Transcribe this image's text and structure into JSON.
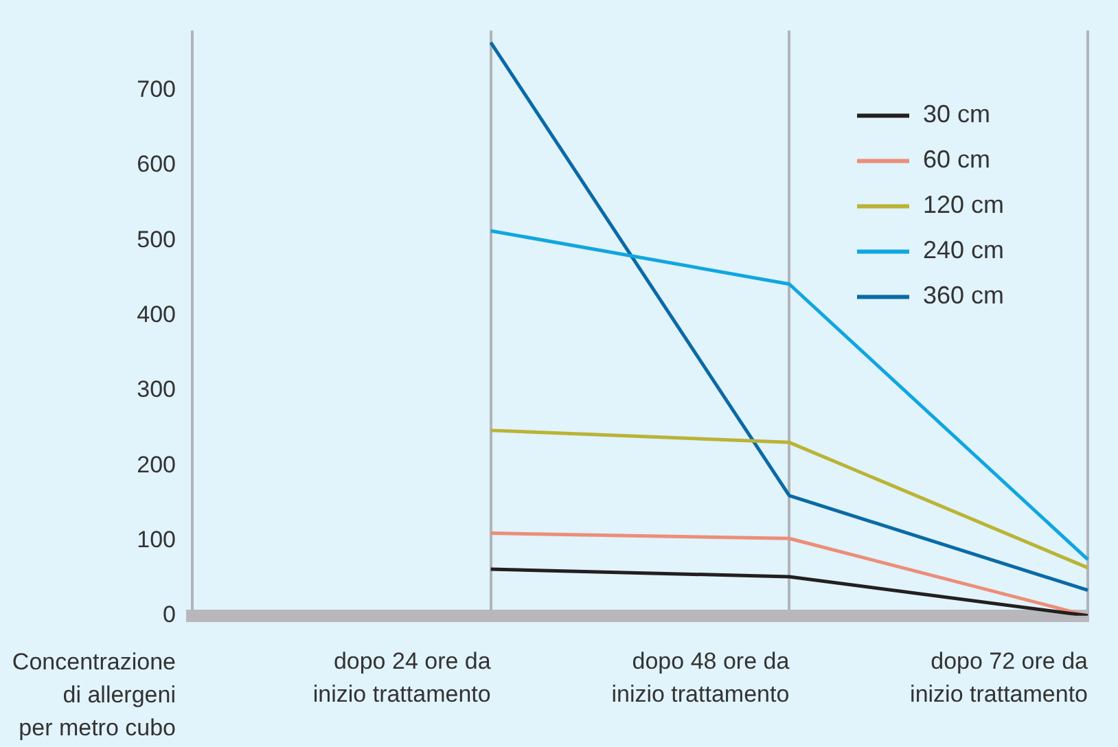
{
  "chart_data": {
    "type": "line",
    "ylabel": "Concentrazione di allergeni per metro cubo",
    "categories": [
      null,
      "dopo 24 ore da inizio trattamento",
      "dopo 48 ore da inizio trattamento",
      "dopo 72 ore da inizio trattamento"
    ],
    "ylim": [
      0,
      780
    ],
    "yticks": [
      0,
      100,
      200,
      300,
      400,
      500,
      600,
      700
    ],
    "grid": "x",
    "legend": "top right",
    "marker": "none",
    "line_style": "solid",
    "series": [
      {
        "name": "30 cm",
        "color": "#231f20",
        "values": [
          null,
          62,
          52,
          0
        ]
      },
      {
        "name": "60 cm",
        "color": "#ec8e78",
        "values": [
          null,
          110,
          103,
          0
        ]
      },
      {
        "name": "120 cm",
        "color": "#bab335",
        "values": [
          null,
          247,
          231,
          64
        ]
      },
      {
        "name": "240 cm",
        "color": "#10a6e0",
        "values": [
          null,
          513,
          442,
          75
        ]
      },
      {
        "name": "360 cm",
        "color": "#0a6aa6",
        "values": [
          null,
          764,
          160,
          34
        ]
      }
    ]
  }
}
